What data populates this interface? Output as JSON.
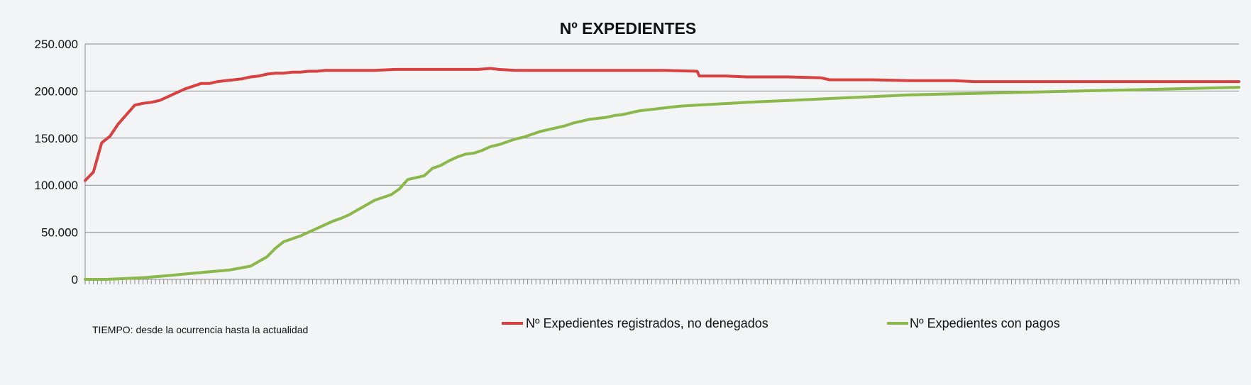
{
  "chart_data": {
    "type": "line",
    "title": "Nº EXPEDIENTES",
    "xlabel": "TIEMPO: desde la ocurrencia hasta la actualidad",
    "ylabel": "",
    "ylim": [
      0,
      250000
    ],
    "yticks": [
      0,
      50000,
      100000,
      150000,
      200000,
      250000
    ],
    "ytick_labels": [
      "0",
      "50.000",
      "100.000",
      "150.000",
      "200.000",
      "250.000"
    ],
    "x_period_count": 280,
    "grid": true,
    "legend_position": "bottom",
    "series": [
      {
        "name": "Nº Expedientes registrados, no denegados",
        "color": "#d94040",
        "points": [
          [
            0,
            105000
          ],
          [
            2,
            114000
          ],
          [
            4,
            145000
          ],
          [
            6,
            152000
          ],
          [
            8,
            165000
          ],
          [
            10,
            175000
          ],
          [
            12,
            185000
          ],
          [
            14,
            187000
          ],
          [
            16,
            188000
          ],
          [
            18,
            190000
          ],
          [
            20,
            194000
          ],
          [
            22,
            198000
          ],
          [
            24,
            202000
          ],
          [
            26,
            205000
          ],
          [
            28,
            208000
          ],
          [
            30,
            208000
          ],
          [
            32,
            210000
          ],
          [
            34,
            211000
          ],
          [
            36,
            212000
          ],
          [
            38,
            213000
          ],
          [
            40,
            215000
          ],
          [
            42,
            216000
          ],
          [
            44,
            218000
          ],
          [
            46,
            219000
          ],
          [
            48,
            219000
          ],
          [
            50,
            220000
          ],
          [
            52,
            220000
          ],
          [
            54,
            221000
          ],
          [
            56,
            221000
          ],
          [
            58,
            222000
          ],
          [
            60,
            222000
          ],
          [
            65,
            222000
          ],
          [
            70,
            222000
          ],
          [
            75,
            223000
          ],
          [
            80,
            223000
          ],
          [
            90,
            223000
          ],
          [
            95,
            223000
          ],
          [
            98,
            224000
          ],
          [
            100,
            223000
          ],
          [
            104,
            222000
          ],
          [
            110,
            222000
          ],
          [
            118,
            222000
          ],
          [
            120,
            222000
          ],
          [
            130,
            222000
          ],
          [
            140,
            222000
          ],
          [
            148,
            221000
          ],
          [
            148.5,
            216000
          ],
          [
            155,
            216000
          ],
          [
            160,
            215000
          ],
          [
            170,
            215000
          ],
          [
            178,
            214000
          ],
          [
            180,
            212000
          ],
          [
            190,
            212000
          ],
          [
            200,
            211000
          ],
          [
            210,
            211000
          ],
          [
            215,
            210000
          ],
          [
            220,
            210000
          ],
          [
            250,
            210000
          ],
          [
            279,
            210000
          ]
        ]
      },
      {
        "name": "Nº Expedientes con pagos",
        "color": "#8ab84a",
        "points": [
          [
            0,
            0
          ],
          [
            5,
            0
          ],
          [
            10,
            1000
          ],
          [
            15,
            2000
          ],
          [
            20,
            4000
          ],
          [
            25,
            6000
          ],
          [
            30,
            8000
          ],
          [
            35,
            10000
          ],
          [
            40,
            14000
          ],
          [
            44,
            24000
          ],
          [
            46,
            33000
          ],
          [
            48,
            40000
          ],
          [
            50,
            43000
          ],
          [
            52,
            46000
          ],
          [
            54,
            50000
          ],
          [
            56,
            54000
          ],
          [
            58,
            58000
          ],
          [
            60,
            62000
          ],
          [
            62,
            65000
          ],
          [
            64,
            69000
          ],
          [
            66,
            74000
          ],
          [
            68,
            79000
          ],
          [
            70,
            84000
          ],
          [
            72,
            87000
          ],
          [
            74,
            90000
          ],
          [
            76,
            96000
          ],
          [
            78,
            106000
          ],
          [
            80,
            108000
          ],
          [
            82,
            110000
          ],
          [
            84,
            118000
          ],
          [
            86,
            121000
          ],
          [
            88,
            126000
          ],
          [
            90,
            130000
          ],
          [
            92,
            133000
          ],
          [
            94,
            134000
          ],
          [
            96,
            137000
          ],
          [
            98,
            141000
          ],
          [
            100,
            143000
          ],
          [
            102,
            146000
          ],
          [
            104,
            149000
          ],
          [
            106,
            151000
          ],
          [
            108,
            154000
          ],
          [
            110,
            157000
          ],
          [
            112,
            159000
          ],
          [
            114,
            161000
          ],
          [
            116,
            163000
          ],
          [
            118,
            166000
          ],
          [
            120,
            168000
          ],
          [
            122,
            170000
          ],
          [
            124,
            171000
          ],
          [
            126,
            172000
          ],
          [
            128,
            174000
          ],
          [
            130,
            175000
          ],
          [
            132,
            177000
          ],
          [
            134,
            179000
          ],
          [
            136,
            180000
          ],
          [
            138,
            181000
          ],
          [
            140,
            182000
          ],
          [
            144,
            184000
          ],
          [
            148,
            185000
          ],
          [
            152,
            186000
          ],
          [
            156,
            187000
          ],
          [
            160,
            188000
          ],
          [
            165,
            189000
          ],
          [
            170,
            190000
          ],
          [
            175,
            191000
          ],
          [
            180,
            192000
          ],
          [
            190,
            194000
          ],
          [
            200,
            196000
          ],
          [
            210,
            197000
          ],
          [
            220,
            198000
          ],
          [
            230,
            199000
          ],
          [
            240,
            200000
          ],
          [
            250,
            201000
          ],
          [
            260,
            202000
          ],
          [
            270,
            203000
          ],
          [
            279,
            204000
          ]
        ]
      }
    ]
  }
}
